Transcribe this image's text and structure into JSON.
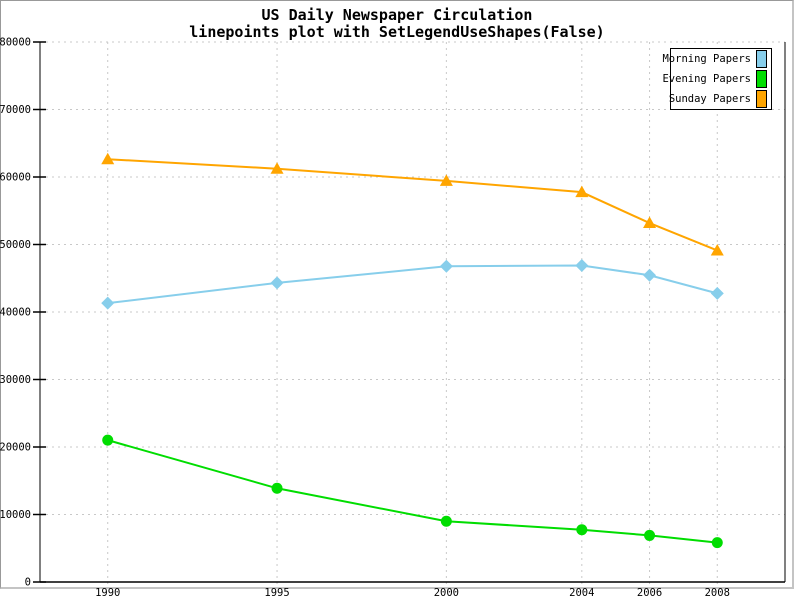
{
  "header": {
    "title": "US Daily Newspaper Circulation",
    "subtitle": "linepoints plot with SetLegendUseShapes(False)"
  },
  "colors": {
    "background": "#FFFFFF",
    "axis": "#000000",
    "grid": "#C8C8C8",
    "frame_top_left": "#999999",
    "frame_bottom_right": "#C4C4C4",
    "morning": "#87CEEB",
    "evening": "#00DD00",
    "sunday": "#FFA500"
  },
  "legend": {
    "position": "top-right",
    "labels": [
      "Morning Papers",
      "Evening Papers",
      "Sunday Papers"
    ]
  },
  "chart_data": {
    "type": "line",
    "subtype": "linepoints",
    "title": "US Daily Newspaper Circulation",
    "subtitle": "linepoints plot with SetLegendUseShapes(False)",
    "x": [
      1990,
      1995,
      2000,
      2004,
      2006,
      2008
    ],
    "x_tick_labels": [
      "1990",
      "1995",
      "2000",
      "2004",
      "2006",
      "2008"
    ],
    "y_ticks": [
      0,
      10000,
      20000,
      30000,
      40000,
      50000,
      60000,
      70000,
      80000
    ],
    "y_tick_labels": [
      "0",
      "10000",
      "20000",
      "30000",
      "40000",
      "50000",
      "60000",
      "70000",
      "80000"
    ],
    "xlim": [
      1988,
      2010
    ],
    "ylim": [
      0,
      80000
    ],
    "grid": true,
    "grid_style": "dashed",
    "grid_color": "#C8C8C8",
    "axis_color": "#000000",
    "legend_position": "top-right",
    "series": [
      {
        "name": "Morning Papers",
        "color": "#87CEEB",
        "marker": "diamond",
        "values": [
          41311,
          44310,
          46772,
          46887,
          45441,
          42757
        ]
      },
      {
        "name": "Evening Papers",
        "color": "#00DD00",
        "marker": "circle",
        "values": [
          21017,
          13883,
          9000,
          7738,
          6900,
          5840
        ]
      },
      {
        "name": "Sunday Papers",
        "color": "#FFA500",
        "marker": "triangle",
        "values": [
          62635,
          61229,
          59421,
          57754,
          53179,
          49115
        ]
      }
    ]
  }
}
